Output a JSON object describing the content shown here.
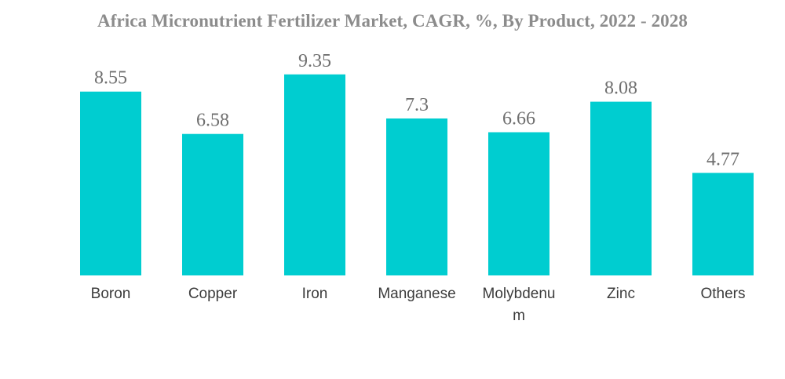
{
  "chart_data": {
    "type": "bar",
    "title": "Africa Micronutrient Fertilizer Market, CAGR, %, By Product, 2022 - 2028",
    "categories": [
      "Boron",
      "Copper",
      "Iron",
      "Manganese",
      "Molybdenum",
      "Zinc",
      "Others"
    ],
    "category_display": [
      [
        "Boron"
      ],
      [
        "Copper"
      ],
      [
        "Iron"
      ],
      [
        "Manganese"
      ],
      [
        "Molybdenu",
        "m"
      ],
      [
        "Zinc"
      ],
      [
        "Others"
      ]
    ],
    "values": [
      8.55,
      6.58,
      9.35,
      7.3,
      6.66,
      8.08,
      4.77
    ],
    "value_labels": [
      "8.55",
      "6.58",
      "9.35",
      "7.3",
      "6.66",
      "8.08",
      "4.77"
    ],
    "xlabel": "",
    "ylabel": "",
    "grid": false,
    "legend": "none",
    "colors": {
      "bar": "#00cdd0",
      "title": "#8c8c8c"
    }
  }
}
